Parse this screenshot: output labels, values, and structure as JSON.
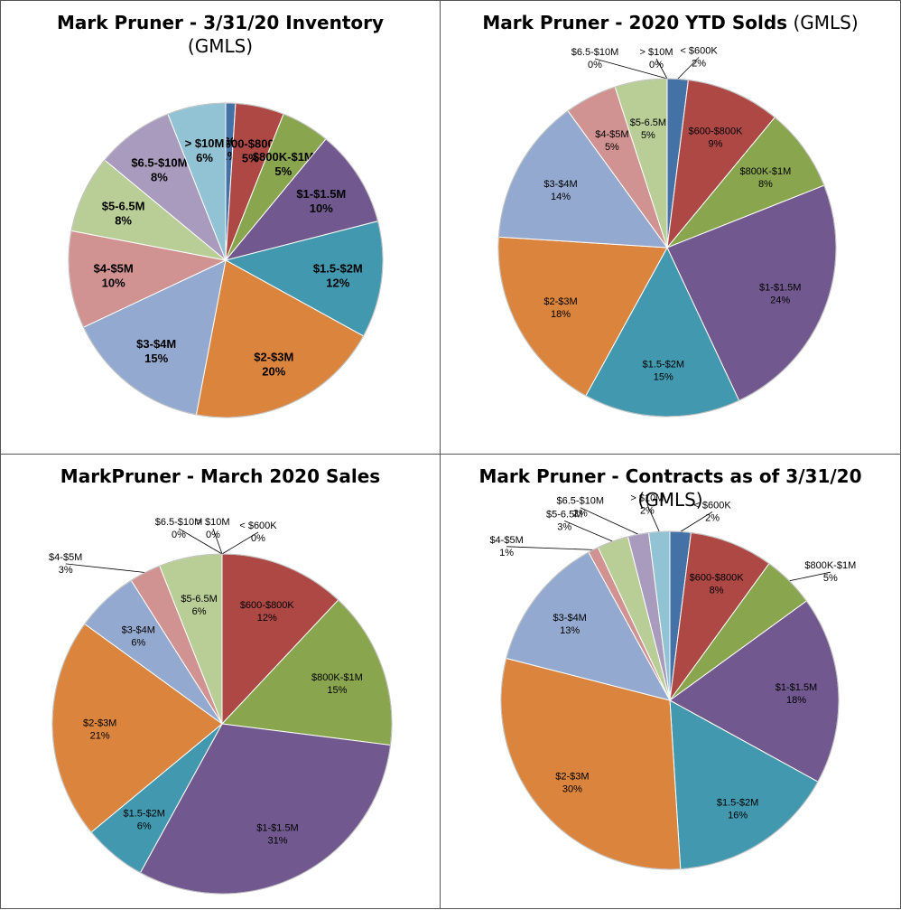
{
  "chart_data": [
    {
      "type": "pie",
      "title": "Mark Pruner - 3/31/20 Inventory",
      "subtitle": "(GMLS)",
      "slices": [
        {
          "label": "< $600K",
          "value": 1,
          "pct": "1%",
          "color": "#4472a6"
        },
        {
          "label": "$600-$800K",
          "value": 5,
          "pct": "5%",
          "color": "#ae4844"
        },
        {
          "label": "$800K-$1M",
          "value": 5,
          "pct": "5%",
          "color": "#89a54e"
        },
        {
          "label": "$1-$1.5M",
          "value": 10,
          "pct": "10%",
          "color": "#71588f"
        },
        {
          "label": "$1.5-$2M",
          "value": 12,
          "pct": "12%",
          "color": "#4198af"
        },
        {
          "label": "$2-$3M",
          "value": 20,
          "pct": "20%",
          "color": "#db843d"
        },
        {
          "label": "$3-$4M",
          "value": 15,
          "pct": "15%",
          "color": "#93a9cf"
        },
        {
          "label": "$4-$5M",
          "value": 10,
          "pct": "10%",
          "color": "#d19392"
        },
        {
          "label": "$5-6.5M",
          "value": 8,
          "pct": "8%",
          "color": "#b9cd96"
        },
        {
          "label": "$6.5-$10M",
          "value": 8,
          "pct": "8%",
          "color": "#a99bbd"
        },
        {
          "label": "> $10M",
          "value": 6,
          "pct": "6%",
          "color": "#91c3d5"
        }
      ]
    },
    {
      "type": "pie",
      "title": "Mark Pruner - 2020 YTD Solds",
      "subtitle": "(GMLS)",
      "slices": [
        {
          "label": "< $600K",
          "value": 2,
          "pct": "2%",
          "color": "#4472a6"
        },
        {
          "label": "$600-$800K",
          "value": 9,
          "pct": "9%",
          "color": "#ae4844"
        },
        {
          "label": "$800K-$1M",
          "value": 8,
          "pct": "8%",
          "color": "#89a54e"
        },
        {
          "label": "$1-$1.5M",
          "value": 24,
          "pct": "24%",
          "color": "#71588f"
        },
        {
          "label": "$1.5-$2M",
          "value": 15,
          "pct": "15%",
          "color": "#4198af"
        },
        {
          "label": "$2-$3M",
          "value": 18,
          "pct": "18%",
          "color": "#db843d"
        },
        {
          "label": "$3-$4M",
          "value": 14,
          "pct": "14%",
          "color": "#93a9cf"
        },
        {
          "label": "$4-$5M",
          "value": 5,
          "pct": "5%",
          "color": "#d19392"
        },
        {
          "label": "$5-6.5M",
          "value": 5,
          "pct": "5%",
          "color": "#b9cd96"
        },
        {
          "label": "$6.5-$10M",
          "value": 0,
          "pct": "0%",
          "color": "#a99bbd"
        },
        {
          "label": "> $10M",
          "value": 0,
          "pct": "0%",
          "color": "#91c3d5"
        }
      ]
    },
    {
      "type": "pie",
      "title": "MarkPruner - March 2020 Sales",
      "subtitle": "",
      "slices": [
        {
          "label": "< $600K",
          "value": 0,
          "pct": "0%",
          "color": "#4472a6"
        },
        {
          "label": "$600-$800K",
          "value": 12,
          "pct": "12%",
          "color": "#ae4844"
        },
        {
          "label": "$800K-$1M",
          "value": 15,
          "pct": "15%",
          "color": "#89a54e"
        },
        {
          "label": "$1-$1.5M",
          "value": 31,
          "pct": "31%",
          "color": "#71588f"
        },
        {
          "label": "$1.5-$2M",
          "value": 6,
          "pct": "6%",
          "color": "#4198af"
        },
        {
          "label": "$2-$3M",
          "value": 21,
          "pct": "21%",
          "color": "#db843d"
        },
        {
          "label": "$3-$4M",
          "value": 6,
          "pct": "6%",
          "color": "#93a9cf"
        },
        {
          "label": "$4-$5M",
          "value": 3,
          "pct": "3%",
          "color": "#d19392"
        },
        {
          "label": "$5-6.5M",
          "value": 6,
          "pct": "6%",
          "color": "#b9cd96"
        },
        {
          "label": "$6.5-$10M",
          "value": 0,
          "pct": "0%",
          "color": "#a99bbd"
        },
        {
          "label": "> $10M",
          "value": 0,
          "pct": "0%",
          "color": "#91c3d5"
        }
      ]
    },
    {
      "type": "pie",
      "title": "Mark Pruner - Contracts as of 3/31/20",
      "subtitle": "(GMLS)",
      "slices": [
        {
          "label": "< $600K",
          "value": 2,
          "pct": "2%",
          "color": "#4472a6"
        },
        {
          "label": "$600-$800K",
          "value": 8,
          "pct": "8%",
          "color": "#ae4844"
        },
        {
          "label": "$800K-$1M",
          "value": 5,
          "pct": "5%",
          "color": "#89a54e"
        },
        {
          "label": "$1-$1.5M",
          "value": 18,
          "pct": "18%",
          "color": "#71588f"
        },
        {
          "label": "$1.5-$2M",
          "value": 16,
          "pct": "16%",
          "color": "#4198af"
        },
        {
          "label": "$2-$3M",
          "value": 30,
          "pct": "30%",
          "color": "#db843d"
        },
        {
          "label": "$3-$4M",
          "value": 13,
          "pct": "13%",
          "color": "#93a9cf"
        },
        {
          "label": "$4-$5M",
          "value": 1,
          "pct": "1%",
          "color": "#d19392"
        },
        {
          "label": "$5-6.5M",
          "value": 3,
          "pct": "3%",
          "color": "#b9cd96"
        },
        {
          "label": "$6.5-$10M",
          "value": 2,
          "pct": "2%",
          "color": "#a99bbd"
        },
        {
          "label": "> $10M",
          "value": 2,
          "pct": "2%",
          "color": "#91c3d5"
        }
      ]
    }
  ]
}
